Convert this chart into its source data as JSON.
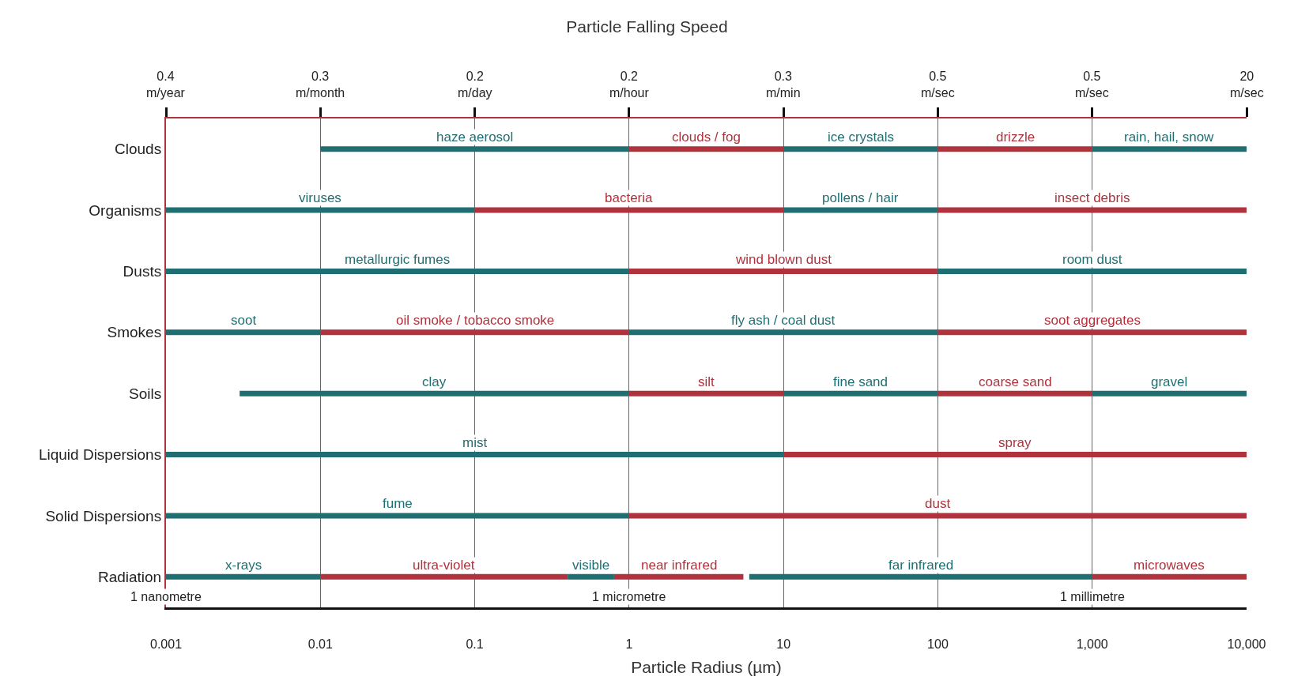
{
  "chart_data": {
    "type": "bar",
    "orientation": "horizontal",
    "log": "x",
    "grid": "x",
    "xlabel": "Particle Radius (µm)",
    "title": "Particle Falling Speed",
    "categories": [
      "Clouds",
      "Organisms",
      "Dusts",
      "Smokes",
      "Soils",
      "Liquid Dispersions",
      "Solid Dispersions",
      "Radiation"
    ],
    "xlim": [
      0.001,
      10000
    ],
    "xticks": [
      {
        "value": 0.001,
        "label": "0.001"
      },
      {
        "value": 0.01,
        "label": "0.01"
      },
      {
        "value": 0.1,
        "label": "0.1"
      },
      1,
      10,
      100,
      {
        "value": 1000,
        "label": "1,000"
      },
      {
        "value": 10000,
        "label": "10,000"
      }
    ],
    "series": [
      {
        "base": [
          0.01,
          0.001,
          0.001,
          0.001,
          0.003,
          0.001,
          0.001,
          0.001
        ],
        "values": [
          0.99,
          0.099,
          0.999,
          0.009,
          0.997,
          9.999,
          0.999,
          0.009
        ],
        "colors": [
          "#1f6f72",
          "#1f6f72",
          "#1f6f72",
          "#1f6f72",
          "#1f6f72",
          "#1f6f72",
          "#1f6f72",
          "#1f6f72"
        ],
        "value_labels": [
          "haze aerosol",
          "viruses",
          "metallurgic fumes",
          "soot",
          "clay",
          "mist",
          "fume",
          "x-rays"
        ]
      },
      {
        "base": [
          1,
          0.1,
          1,
          0.01,
          1,
          10,
          1,
          0.01
        ],
        "values": [
          9,
          9.9,
          99,
          0.99,
          9,
          9990,
          9999,
          0.39
        ],
        "colors": [
          "#b0323c",
          "#b0323c",
          "#b0323c",
          "#b0323c",
          "#b0323c",
          "#b0323c",
          "#b0323c",
          "#b0323c"
        ],
        "value_labels": [
          "clouds / fog",
          "bacteria",
          "wind blown dust",
          "oil smoke / tobacco smoke",
          "silt",
          "spray",
          "dust",
          "ultra-violet"
        ]
      },
      {
        "base": [
          10,
          10,
          100,
          1,
          10,
          null,
          null,
          0.4
        ],
        "values": [
          90,
          90,
          9900,
          99,
          90,
          null,
          null,
          0.4
        ],
        "colors": [
          "#1f6f72",
          "#1f6f72",
          "#1f6f72",
          "#1f6f72",
          "#1f6f72",
          null,
          null,
          "#1f6f72"
        ],
        "value_labels": [
          "ice crystals",
          "pollens / hair",
          "room dust",
          "fly ash / coal dust",
          "fine sand",
          null,
          null,
          "visible"
        ]
      },
      {
        "base": [
          100,
          100,
          null,
          100,
          100,
          null,
          null,
          0.8
        ],
        "values": [
          900,
          9900,
          null,
          9900,
          900,
          null,
          null,
          4.7
        ],
        "colors": [
          "#b0323c",
          "#b0323c",
          null,
          "#b0323c",
          "#b0323c",
          null,
          null,
          "#b0323c"
        ],
        "value_labels": [
          "drizzle",
          "insect debris",
          null,
          "soot aggregates",
          "coarse sand",
          null,
          null,
          "near infrared"
        ]
      },
      {
        "base": [
          1000,
          null,
          null,
          null,
          1000,
          null,
          null,
          6
        ],
        "values": [
          9000,
          null,
          null,
          null,
          9000,
          null,
          null,
          994
        ],
        "colors": [
          "#1f6f72",
          null,
          null,
          null,
          "#1f6f72",
          null,
          null,
          "#1f6f72"
        ],
        "value_labels": [
          "rain, hail, snow",
          null,
          null,
          null,
          "gravel",
          null,
          null,
          "far infrared"
        ]
      },
      {
        "base": [
          null,
          null,
          null,
          null,
          null,
          null,
          null,
          1000
        ],
        "values": [
          null,
          null,
          null,
          null,
          null,
          null,
          null,
          9000
        ],
        "colors": [
          null,
          null,
          null,
          null,
          null,
          null,
          null,
          "#b0323c"
        ],
        "value_labels": [
          null,
          null,
          null,
          null,
          null,
          null,
          null,
          "microwaves"
        ]
      }
    ],
    "annotations": [
      "1 nanometre",
      "1 micrometre",
      "1 millimetre",
      "0.4\nm/year",
      "0.3\nm/month",
      "0.2\nm/day",
      "0.2\nm/hour",
      "0.3\nm/min",
      "0.5\nm/sec",
      "0.5\nm/sec",
      "20\nm/sec"
    ]
  }
}
